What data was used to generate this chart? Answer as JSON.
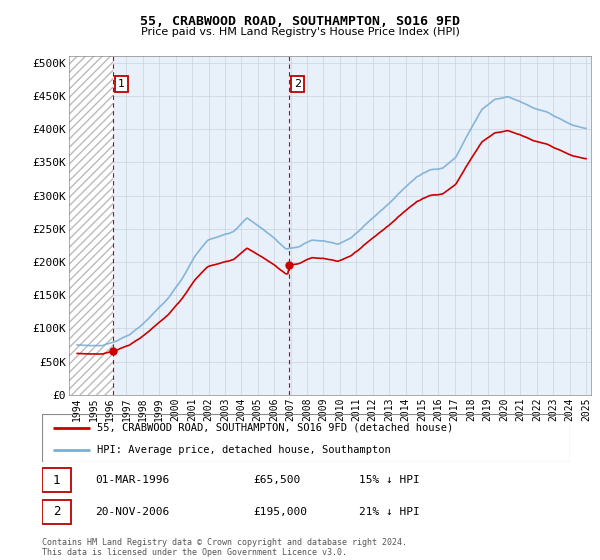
{
  "title": "55, CRABWOOD ROAD, SOUTHAMPTON, SO16 9FD",
  "subtitle": "Price paid vs. HM Land Registry's House Price Index (HPI)",
  "sale1_date": "01-MAR-1996",
  "sale1_price": 65500,
  "sale1_label": "15% ↓ HPI",
  "sale2_date": "20-NOV-2006",
  "sale2_price": 195000,
  "sale2_label": "21% ↓ HPI",
  "legend_line1": "55, CRABWOOD ROAD, SOUTHAMPTON, SO16 9FD (detached house)",
  "legend_line2": "HPI: Average price, detached house, Southampton",
  "footer": "Contains HM Land Registry data © Crown copyright and database right 2024.\nThis data is licensed under the Open Government Licence v3.0.",
  "property_color": "#cc0000",
  "hpi_color": "#7bafd4",
  "dashed_color": "#cc0000",
  "plot_bg_color": "#e8f0fa",
  "ylim": [
    0,
    500000
  ],
  "yticks": [
    0,
    50000,
    100000,
    150000,
    200000,
    250000,
    300000,
    350000,
    400000,
    450000,
    500000
  ],
  "sale1_x": 1996.17,
  "sale2_x": 2006.9
}
